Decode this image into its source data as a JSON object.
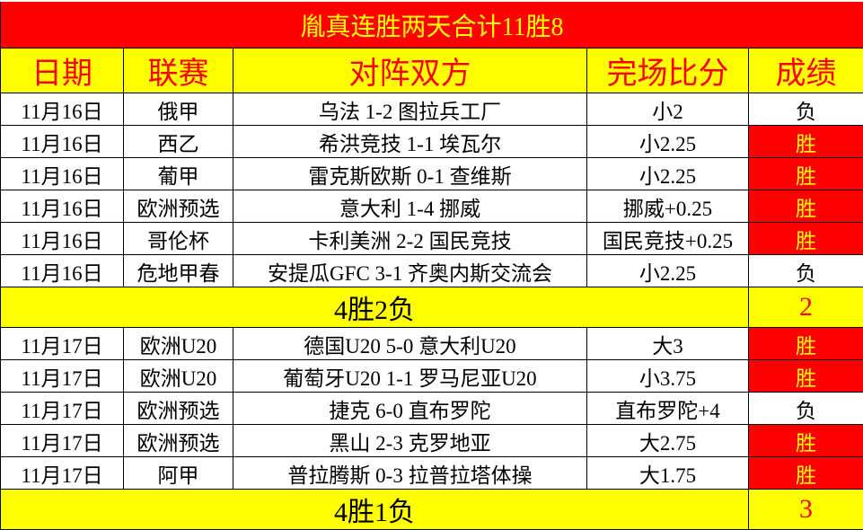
{
  "title": "胤真连胜两天合计11胜8",
  "headers": [
    "日期",
    "联赛",
    "对阵双方",
    "完场比分",
    "成绩"
  ],
  "colors": {
    "title_bg": "#ff0000",
    "title_text": "#ffff00",
    "header_bg": "#ffff00",
    "header_text": "#ff0000",
    "win_bg": "#ff0000",
    "win_text": "#ffff00",
    "summary_bg": "#ffff00"
  },
  "groups": [
    {
      "rows": [
        {
          "date": "11月16日",
          "league": "俄甲",
          "match": "乌法 1-2 图拉兵工厂",
          "score": "小2",
          "result": "负",
          "win": false
        },
        {
          "date": "11月16日",
          "league": "西乙",
          "match": "希洪竞技 1-1 埃瓦尔",
          "score": "小2.25",
          "result": "胜",
          "win": true
        },
        {
          "date": "11月16日",
          "league": "葡甲",
          "match": "雷克斯欧斯 0-1 查维斯",
          "score": "小2.25",
          "result": "胜",
          "win": true
        },
        {
          "date": "11月16日",
          "league": "欧洲预选",
          "match": "意大利 1-4 挪威",
          "score": "挪威+0.25",
          "result": "胜",
          "win": true
        },
        {
          "date": "11月16日",
          "league": "哥伦杯",
          "match": "卡利美洲 2-2 国民竞技",
          "score": "国民竞技+0.25",
          "result": "胜",
          "win": true
        },
        {
          "date": "11月16日",
          "league": "危地甲春",
          "match": "安提瓜GFC 3-1 齐奥内斯交流会",
          "score": "小2.25",
          "result": "负",
          "win": false
        }
      ],
      "summary": "4胜2负",
      "count": "2"
    },
    {
      "rows": [
        {
          "date": "11月17日",
          "league": "欧洲U20",
          "match": "德国U20 5-0 意大利U20",
          "score": "大3",
          "result": "胜",
          "win": true
        },
        {
          "date": "11月17日",
          "league": "欧洲U20",
          "match": "葡萄牙U20 1-1 罗马尼亚U20",
          "score": "小3.75",
          "result": "胜",
          "win": true
        },
        {
          "date": "11月17日",
          "league": "欧洲预选",
          "match": "捷克 6-0 直布罗陀",
          "score": "直布罗陀+4",
          "result": "负",
          "win": false
        },
        {
          "date": "11月17日",
          "league": "欧洲预选",
          "match": "黑山 2-3 克罗地亚",
          "score": "大2.75",
          "result": "胜",
          "win": true
        },
        {
          "date": "11月17日",
          "league": "阿甲",
          "match": "普拉腾斯 0-3 拉普拉塔体操",
          "score": "大1.75",
          "result": "胜",
          "win": true
        }
      ],
      "summary": "4胜1负",
      "count": "3"
    }
  ]
}
